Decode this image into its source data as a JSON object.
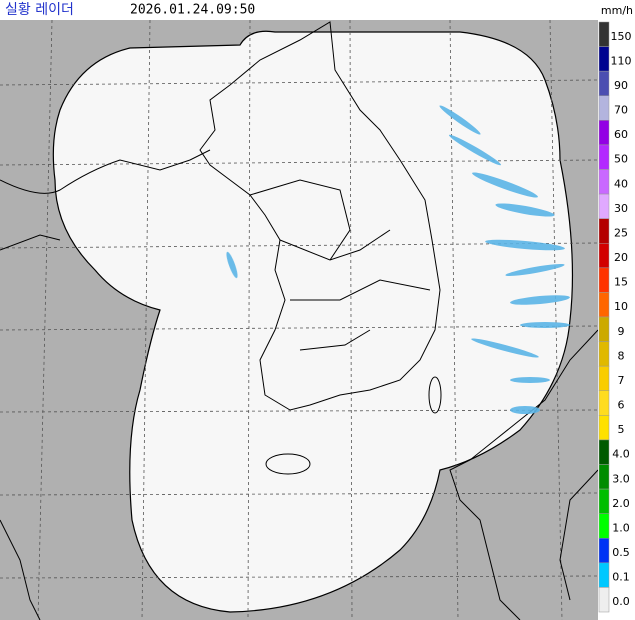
{
  "header": {
    "title": "실황 레이더",
    "time": "2026.01.24.09:50"
  },
  "legend": {
    "unit": "mm/h",
    "items": [
      {
        "label": "150",
        "color": "#333333"
      },
      {
        "label": "110",
        "color": "#000390"
      },
      {
        "label": "90",
        "color": "#4c4eb1"
      },
      {
        "label": "70",
        "color": "#b3b4de"
      },
      {
        "label": "60",
        "color": "#9300e4"
      },
      {
        "label": "50",
        "color": "#b329ff"
      },
      {
        "label": "40",
        "color": "#c969ff"
      },
      {
        "label": "30",
        "color": "#e0a9ff"
      },
      {
        "label": "25",
        "color": "#b40000"
      },
      {
        "label": "20",
        "color": "#d20000"
      },
      {
        "label": "15",
        "color": "#ff3300"
      },
      {
        "label": "10",
        "color": "#ff6600"
      },
      {
        "label": "9",
        "color": "#ccaa00"
      },
      {
        "label": "8",
        "color": "#e0b900"
      },
      {
        "label": "7",
        "color": "#f9cd00"
      },
      {
        "label": "6",
        "color": "#ffdc1f"
      },
      {
        "label": "5",
        "color": "#ffe100"
      },
      {
        "label": "4.0",
        "color": "#005a00"
      },
      {
        "label": "3.0",
        "color": "#008c00"
      },
      {
        "label": "2.0",
        "color": "#00be00"
      },
      {
        "label": "1.0",
        "color": "#00ff00"
      },
      {
        "label": "0.5",
        "color": "#0033f5"
      },
      {
        "label": "0.1",
        "color": "#00c8ff"
      },
      {
        "label": "0.0",
        "color": "#eeeeee"
      }
    ]
  }
}
